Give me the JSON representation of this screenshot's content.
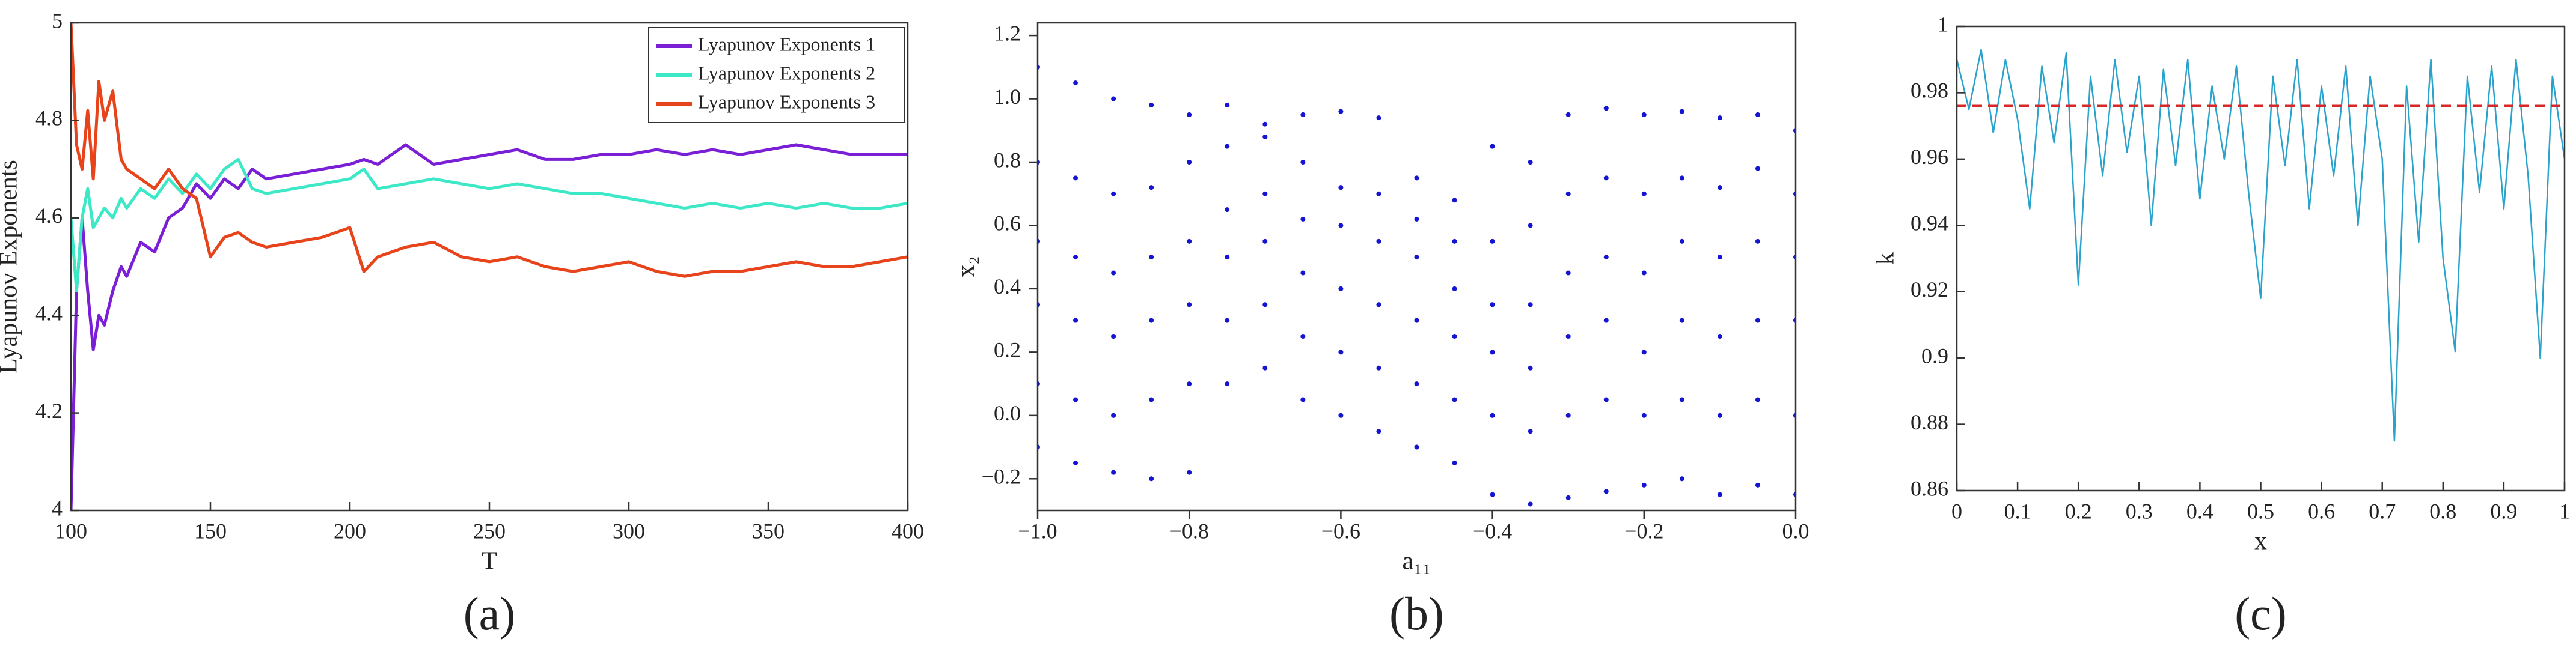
{
  "chart_data": [
    {
      "type": "line",
      "caption": "(a)",
      "xlabel": "T",
      "ylabel": "Lyapunov Exponents",
      "x": [
        100,
        102,
        104,
        106,
        108,
        110,
        112,
        115,
        118,
        120,
        125,
        130,
        135,
        140,
        145,
        150,
        155,
        160,
        165,
        170,
        180,
        190,
        200,
        205,
        210,
        220,
        230,
        240,
        250,
        260,
        270,
        280,
        290,
        300,
        310,
        320,
        330,
        340,
        350,
        360,
        370,
        380,
        390,
        400
      ],
      "series": [
        {
          "name": "Lyapunov Exponents 1",
          "color": "#7a1fd6",
          "values": [
            4.0,
            4.45,
            4.6,
            4.45,
            4.33,
            4.4,
            4.38,
            4.45,
            4.5,
            4.48,
            4.55,
            4.53,
            4.6,
            4.62,
            4.67,
            4.64,
            4.68,
            4.66,
            4.7,
            4.68,
            4.69,
            4.7,
            4.71,
            4.72,
            4.71,
            4.75,
            4.71,
            4.72,
            4.73,
            4.74,
            4.72,
            4.72,
            4.73,
            4.73,
            4.74,
            4.73,
            4.74,
            4.73,
            4.74,
            4.75,
            4.74,
            4.73,
            4.73,
            4.73
          ]
        },
        {
          "name": "Lyapunov Exponents 2",
          "color": "#3de8c7",
          "values": [
            4.6,
            4.45,
            4.6,
            4.66,
            4.58,
            4.6,
            4.62,
            4.6,
            4.64,
            4.62,
            4.66,
            4.64,
            4.68,
            4.65,
            4.69,
            4.66,
            4.7,
            4.72,
            4.66,
            4.65,
            4.66,
            4.67,
            4.68,
            4.7,
            4.66,
            4.67,
            4.68,
            4.67,
            4.66,
            4.67,
            4.66,
            4.65,
            4.65,
            4.64,
            4.63,
            4.62,
            4.63,
            4.62,
            4.63,
            4.62,
            4.63,
            4.62,
            4.62,
            4.63
          ]
        },
        {
          "name": "Lyapunov Exponents 3",
          "color": "#e8441c",
          "values": [
            5.0,
            4.75,
            4.7,
            4.82,
            4.68,
            4.88,
            4.8,
            4.86,
            4.72,
            4.7,
            4.68,
            4.66,
            4.7,
            4.66,
            4.64,
            4.52,
            4.56,
            4.57,
            4.55,
            4.54,
            4.55,
            4.56,
            4.58,
            4.49,
            4.52,
            4.54,
            4.55,
            4.52,
            4.51,
            4.52,
            4.5,
            4.49,
            4.5,
            4.51,
            4.49,
            4.48,
            4.49,
            4.49,
            4.5,
            4.51,
            4.5,
            4.5,
            4.51,
            4.52
          ]
        }
      ],
      "xlim": [
        100,
        400
      ],
      "xticks": [
        100,
        150,
        200,
        250,
        300,
        350,
        400
      ],
      "ylim": [
        4,
        5
      ],
      "yticks": [
        4,
        4.2,
        4.4,
        4.6,
        4.8,
        5
      ],
      "legend": "upper-right",
      "tick_direction": "in"
    },
    {
      "type": "scatter",
      "caption": "(b)",
      "xlabel": "a₁₁",
      "ylabel": "x₂",
      "color": "#1414d2",
      "x": [
        -1,
        -1,
        -1,
        -1,
        -1,
        -1,
        -0.95,
        -0.95,
        -0.95,
        -0.95,
        -0.95,
        -0.95,
        -0.9,
        -0.9,
        -0.9,
        -0.9,
        -0.9,
        -0.9,
        -0.85,
        -0.85,
        -0.85,
        -0.85,
        -0.85,
        -0.85,
        -0.8,
        -0.8,
        -0.8,
        -0.8,
        -0.8,
        -0.8,
        -0.75,
        -0.75,
        -0.75,
        -0.75,
        -0.75,
        -0.75,
        -0.7,
        -0.7,
        -0.7,
        -0.7,
        -0.7,
        -0.7,
        -0.65,
        -0.65,
        -0.65,
        -0.65,
        -0.65,
        -0.65,
        -0.6,
        -0.6,
        -0.6,
        -0.6,
        -0.6,
        -0.6,
        -0.55,
        -0.55,
        -0.55,
        -0.55,
        -0.55,
        -0.55,
        -0.5,
        -0.5,
        -0.5,
        -0.5,
        -0.5,
        -0.5,
        -0.45,
        -0.45,
        -0.45,
        -0.45,
        -0.45,
        -0.45,
        -0.4,
        -0.4,
        -0.4,
        -0.4,
        -0.4,
        -0.4,
        -0.35,
        -0.35,
        -0.35,
        -0.35,
        -0.35,
        -0.35,
        -0.3,
        -0.3,
        -0.3,
        -0.3,
        -0.3,
        -0.3,
        -0.25,
        -0.25,
        -0.25,
        -0.25,
        -0.25,
        -0.25,
        -0.2,
        -0.2,
        -0.2,
        -0.2,
        -0.2,
        -0.2,
        -0.15,
        -0.15,
        -0.15,
        -0.15,
        -0.15,
        -0.15,
        -0.1,
        -0.1,
        -0.1,
        -0.1,
        -0.1,
        -0.1,
        -0.05,
        -0.05,
        -0.05,
        -0.05,
        -0.05,
        -0.05,
        0,
        0,
        0,
        0,
        0,
        0
      ],
      "values": [
        -0.1,
        0.1,
        0.35,
        0.55,
        0.8,
        1.1,
        -0.15,
        0.05,
        0.3,
        0.5,
        0.75,
        1.05,
        -0.18,
        0.0,
        0.25,
        0.45,
        0.7,
        1.0,
        -0.2,
        0.05,
        0.3,
        0.5,
        0.72,
        0.98,
        -0.18,
        0.1,
        0.35,
        0.55,
        0.8,
        0.95,
        0.1,
        0.3,
        0.5,
        0.65,
        0.85,
        0.98,
        0.15,
        0.35,
        0.55,
        0.7,
        0.88,
        0.92,
        0.05,
        0.25,
        0.45,
        0.62,
        0.8,
        0.95,
        0.0,
        0.2,
        0.4,
        0.6,
        0.72,
        0.96,
        -0.05,
        0.15,
        0.35,
        0.55,
        0.7,
        0.94,
        -0.1,
        0.1,
        0.3,
        0.5,
        0.62,
        0.75,
        -0.15,
        0.05,
        0.25,
        0.4,
        0.55,
        0.68,
        -0.25,
        0.0,
        0.2,
        0.35,
        0.55,
        0.85,
        -0.28,
        -0.05,
        0.15,
        0.35,
        0.6,
        0.8,
        -0.26,
        0.0,
        0.25,
        0.45,
        0.7,
        0.95,
        -0.24,
        0.05,
        0.3,
        0.5,
        0.75,
        0.97,
        -0.22,
        0.0,
        0.2,
        0.45,
        0.7,
        0.95,
        -0.2,
        0.05,
        0.3,
        0.55,
        0.75,
        0.96,
        -0.25,
        0.0,
        0.25,
        0.5,
        0.72,
        0.94,
        -0.22,
        0.05,
        0.3,
        0.55,
        0.78,
        0.95,
        -0.25,
        0.0,
        0.3,
        0.5,
        0.7,
        0.9
      ],
      "xlim": [
        -1,
        0
      ],
      "xticks": [
        {
          "value": -1,
          "label": "−1.0"
        },
        {
          "value": -0.8,
          "label": "−0.8"
        },
        {
          "value": -0.6,
          "label": "−0.6"
        },
        {
          "value": -0.4,
          "label": "−0.4"
        },
        {
          "value": -0.2,
          "label": "−0.2"
        },
        {
          "value": 0,
          "label": "0.0"
        }
      ],
      "ylim": [
        -0.3,
        1.24
      ],
      "yticks": [
        {
          "value": -0.2,
          "label": "−0.2"
        },
        {
          "value": 0,
          "label": "0.0"
        },
        0.2,
        0.4,
        0.6,
        0.8,
        {
          "value": 1,
          "label": "1.0"
        },
        1.2
      ],
      "tick_direction": "out"
    },
    {
      "type": "line",
      "caption": "(c)",
      "xlabel": "x",
      "ylabel": "k",
      "x": [
        0,
        0.02,
        0.04,
        0.06,
        0.08,
        0.1,
        0.12,
        0.14,
        0.16,
        0.18,
        0.2,
        0.22,
        0.24,
        0.26,
        0.28,
        0.3,
        0.32,
        0.34,
        0.36,
        0.38,
        0.4,
        0.42,
        0.44,
        0.46,
        0.48,
        0.5,
        0.52,
        0.54,
        0.56,
        0.58,
        0.6,
        0.62,
        0.64,
        0.66,
        0.68,
        0.7,
        0.72,
        0.74,
        0.76,
        0.78,
        0.8,
        0.82,
        0.84,
        0.86,
        0.88,
        0.9,
        0.92,
        0.94,
        0.96,
        0.98,
        1
      ],
      "series": [
        {
          "color": "#2aa3cc",
          "values": [
            0.99,
            0.975,
            0.993,
            0.968,
            0.99,
            0.972,
            0.945,
            0.988,
            0.965,
            0.992,
            0.922,
            0.985,
            0.955,
            0.99,
            0.962,
            0.985,
            0.94,
            0.987,
            0.958,
            0.99,
            0.948,
            0.982,
            0.96,
            0.988,
            0.95,
            0.918,
            0.985,
            0.958,
            0.99,
            0.945,
            0.982,
            0.955,
            0.988,
            0.94,
            0.985,
            0.96,
            0.875,
            0.982,
            0.935,
            0.99,
            0.93,
            0.902,
            0.985,
            0.95,
            0.988,
            0.945,
            0.99,
            0.955,
            0.9,
            0.985,
            0.96
          ]
        }
      ],
      "ref_line": 0.976,
      "ref_color": "#d62828",
      "xlim": [
        0,
        1
      ],
      "xticks": [
        0,
        0.1,
        0.2,
        0.3,
        0.4,
        0.5,
        0.6,
        0.7,
        0.8,
        0.9,
        1
      ],
      "ylim": [
        0.86,
        1
      ],
      "yticks": [
        0.86,
        0.88,
        0.9,
        0.92,
        0.94,
        0.96,
        0.98,
        1
      ],
      "tick_direction": "in"
    }
  ]
}
